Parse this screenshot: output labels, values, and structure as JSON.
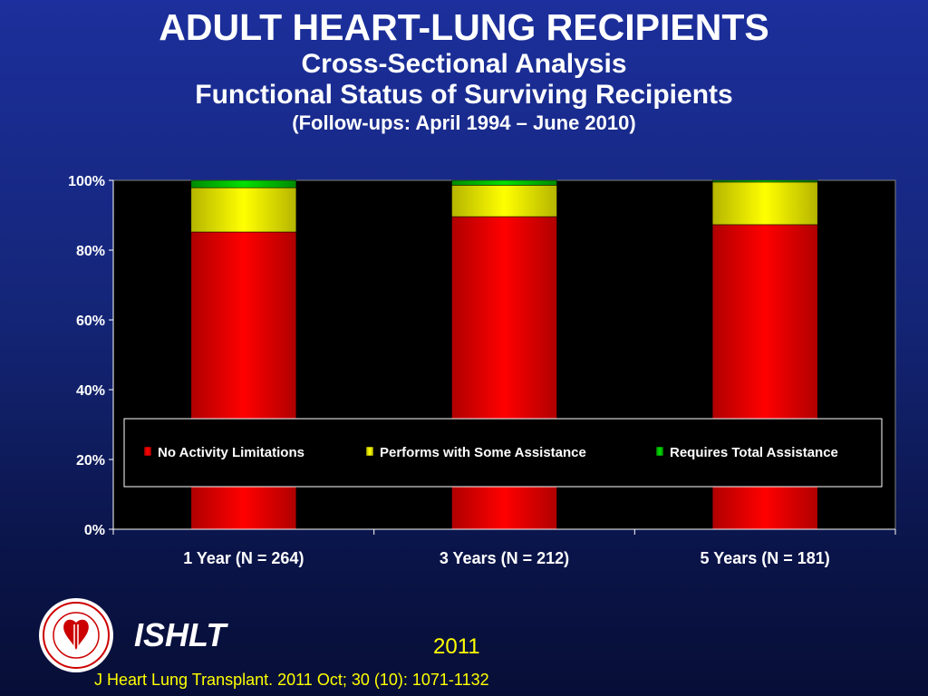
{
  "header": {
    "title": "ADULT HEART-LUNG RECIPIENTS",
    "subtitle1": "Cross-Sectional Analysis",
    "subtitle2": "Functional Status of Surviving Recipients",
    "subtitle3": "(Follow-ups: April 1994 – June 2010)"
  },
  "chart_data": {
    "type": "bar",
    "stacked": true,
    "categories": [
      "1 Year (N = 264)",
      "3 Years (N = 212)",
      "5 Years (N = 181)"
    ],
    "series": [
      {
        "name": "No Activity Limitations",
        "color": "#ff0000",
        "values": [
          85.2,
          89.6,
          87.3
        ]
      },
      {
        "name": "Performs with Some Assistance",
        "color": "#ffff00",
        "values": [
          12.7,
          9.0,
          12.2
        ]
      },
      {
        "name": "Requires Total Assistance",
        "color": "#00cc00",
        "values": [
          2.1,
          1.4,
          0.5
        ]
      }
    ],
    "ylim": [
      0,
      100
    ],
    "yticks": [
      "0%",
      "20%",
      "40%",
      "60%",
      "80%",
      "100%"
    ],
    "grid": false,
    "legend_position": "inside-bottom",
    "plot_background": "#000000"
  },
  "footer": {
    "brand": "ISHLT",
    "year": "2011",
    "citation": "J Heart Lung Transplant. 2011 Oct; 30 (10): 1071-1132"
  }
}
